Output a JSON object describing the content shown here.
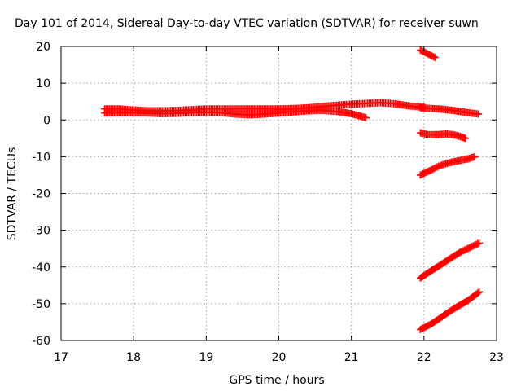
{
  "chart_data": {
    "type": "scatter",
    "title": "Day 101 of 2014, Sidereal Day-to-day VTEC variation (SDTVAR) for receiver suwn",
    "xlabel": "GPS time / hours",
    "ylabel": "SDTVAR / TECUs",
    "xlim": [
      17,
      23
    ],
    "ylim": [
      -60,
      20
    ],
    "x_ticks": [
      17,
      18,
      19,
      20,
      21,
      22,
      23
    ],
    "y_ticks": [
      -60,
      -50,
      -40,
      -30,
      -20,
      -10,
      0,
      10,
      20
    ],
    "grid": true,
    "legend": "none",
    "marker": "plus",
    "color": "#ff0000",
    "series": [
      {
        "x": [
          17.6,
          17.8,
          18.0,
          18.2,
          18.4,
          18.6,
          18.8,
          19.0,
          19.2,
          19.4,
          19.6,
          19.8,
          20.0,
          20.2,
          20.4,
          20.6,
          20.8,
          21.0,
          21.2,
          21.4,
          21.6,
          21.8,
          22.0
        ],
        "y": [
          3.0,
          3.0,
          2.7,
          2.5,
          2.5,
          2.6,
          2.8,
          3.0,
          3.0,
          3.0,
          3.0,
          3.0,
          3.0,
          3.1,
          3.3,
          3.7,
          4.0,
          4.3,
          4.5,
          4.7,
          4.4,
          3.8,
          3.5
        ]
      },
      {
        "x": [
          17.6,
          17.8,
          18.0,
          18.2,
          18.4,
          18.6,
          18.8,
          19.0,
          19.2,
          19.4,
          19.6,
          19.8,
          20.0,
          20.2,
          20.4,
          20.6,
          20.8,
          21.0,
          21.2
        ],
        "y": [
          1.9,
          2.0,
          2.0,
          1.9,
          1.7,
          1.8,
          2.0,
          2.1,
          2.0,
          1.6,
          1.4,
          1.6,
          1.9,
          2.2,
          2.5,
          2.6,
          2.3,
          1.7,
          0.6
        ]
      },
      {
        "x": [
          21.95,
          22.05,
          22.15
        ],
        "y": [
          19.0,
          18.0,
          17.0
        ]
      },
      {
        "x": [
          21.95,
          22.1,
          22.2,
          22.3,
          22.4,
          22.5,
          22.6,
          22.75
        ],
        "y": [
          3.3,
          3.1,
          3.0,
          2.8,
          2.6,
          2.3,
          2.0,
          1.6
        ]
      },
      {
        "x": [
          21.95,
          22.05,
          22.2,
          22.3,
          22.4,
          22.5,
          22.57
        ],
        "y": [
          -3.5,
          -4.0,
          -4.0,
          -3.8,
          -4.0,
          -4.5,
          -5.0
        ]
      },
      {
        "x": [
          21.95,
          22.1,
          22.2,
          22.3,
          22.4,
          22.5,
          22.6,
          22.7
        ],
        "y": [
          -15.0,
          -13.6,
          -12.6,
          -11.9,
          -11.4,
          -11.0,
          -10.6,
          -10.0
        ]
      },
      {
        "x": [
          21.95,
          22.1,
          22.2,
          22.3,
          22.4,
          22.5,
          22.6,
          22.76
        ],
        "y": [
          -43.0,
          -41.0,
          -39.8,
          -38.5,
          -37.2,
          -36.0,
          -35.0,
          -33.5
        ]
      },
      {
        "x": [
          21.95,
          22.1,
          22.2,
          22.3,
          22.4,
          22.5,
          22.6,
          22.76
        ],
        "y": [
          -57.0,
          -55.5,
          -54.2,
          -52.8,
          -51.5,
          -50.3,
          -49.2,
          -46.8
        ]
      }
    ]
  }
}
